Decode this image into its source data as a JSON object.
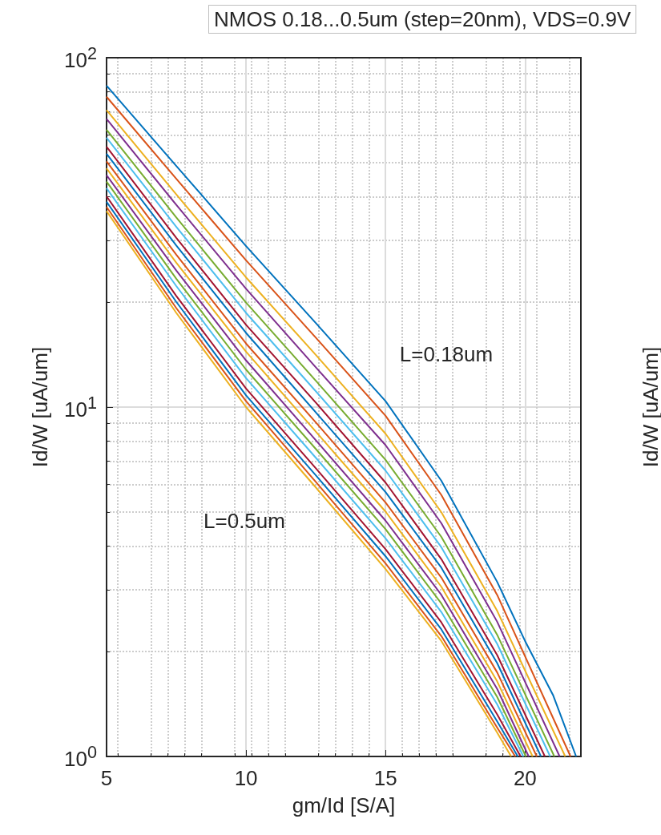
{
  "chart_data": {
    "type": "line",
    "title": "NMOS 0.18...0.5um (step=20nm), VDS=0.9V",
    "xlabel": "gm/Id [S/A]",
    "ylabel": "Id/W [uA/um]",
    "log": "y",
    "grid": true,
    "marker": "none",
    "line_style": "solid",
    "xlim": [
      5,
      22
    ],
    "xticks": [
      5,
      10,
      15,
      20
    ],
    "ylim": [
      1,
      100
    ],
    "yticks": [
      {
        "value": 1,
        "label": "10$^{0}$"
      },
      {
        "value": 10,
        "label": "10$^{1}$"
      },
      {
        "value": 100,
        "label": "10$^{2}$"
      }
    ],
    "annotations": [
      "L=0.18um",
      "L=0.5um",
      "Id/W [uA/um]"
    ],
    "series": [
      {
        "color": "#0072bd",
        "x": [
          5,
          7.5,
          10,
          12.5,
          15,
          17,
          19,
          20,
          21,
          21.83
        ],
        "values": [
          83.2,
          49.0,
          28.9,
          17.4,
          10.4,
          6.15,
          3.16,
          2.14,
          1.5,
          1
        ]
      },
      {
        "color": "#d95319",
        "x": [
          5,
          7.5,
          10,
          12.5,
          15,
          17,
          19,
          21.63
        ],
        "values": [
          77.3,
          45.0,
          26.3,
          15.8,
          9.44,
          5.6,
          2.9,
          1
        ]
      },
      {
        "color": "#edb120",
        "x": [
          5,
          7.5,
          10,
          12.5,
          15,
          17,
          19,
          21.44
        ],
        "values": [
          70.8,
          40.6,
          23.5,
          14.1,
          8.39,
          5.0,
          2.61,
          1
        ]
      },
      {
        "color": "#7e2f8e",
        "x": [
          5,
          7.5,
          10,
          12.5,
          15,
          17,
          19,
          21.24
        ],
        "values": [
          66.8,
          37.9,
          21.8,
          13.0,
          7.78,
          4.65,
          2.43,
          1
        ]
      },
      {
        "color": "#77ac30",
        "x": [
          5,
          7.5,
          10,
          12.5,
          15,
          17,
          19,
          21.05
        ],
        "values": [
          62.2,
          34.9,
          19.9,
          11.9,
          7.06,
          4.25,
          2.23,
          1
        ]
      },
      {
        "color": "#4dbeee",
        "x": [
          5,
          7.5,
          10,
          12.5,
          15,
          17,
          19,
          20.9
        ],
        "values": [
          59.0,
          32.8,
          18.6,
          11.1,
          6.58,
          3.97,
          2.1,
          1
        ]
      },
      {
        "color": "#a2142f",
        "x": [
          5,
          7.5,
          10,
          12.5,
          15,
          17,
          19,
          20.71
        ],
        "values": [
          55.6,
          30.5,
          17.2,
          10.3,
          6.08,
          3.67,
          1.95,
          1
        ]
      },
      {
        "color": "#0072bd",
        "x": [
          5,
          7.5,
          10,
          12.5,
          15,
          17,
          19,
          20.57
        ],
        "values": [
          53.1,
          29.0,
          16.3,
          9.66,
          5.71,
          3.47,
          1.85,
          1
        ]
      },
      {
        "color": "#d95319",
        "x": [
          5,
          7.5,
          10,
          12.5,
          15,
          17,
          19,
          20.42
        ],
        "values": [
          50.5,
          27.3,
          15.2,
          9.04,
          5.33,
          3.25,
          1.74,
          1
        ]
      },
      {
        "color": "#edb120",
        "x": [
          5,
          7.5,
          10,
          12.5,
          15,
          17,
          19,
          20.27
        ],
        "values": [
          48.2,
          25.9,
          14.4,
          8.51,
          5.02,
          3.06,
          1.64,
          1
        ]
      },
      {
        "color": "#7e2f8e",
        "x": [
          5,
          7.5,
          10,
          12.5,
          15,
          17,
          19,
          20.13
        ],
        "values": [
          46.1,
          24.6,
          13.6,
          8.04,
          4.73,
          2.9,
          1.56,
          1
        ]
      },
      {
        "color": "#77ac30",
        "x": [
          5,
          7.5,
          10,
          12.5,
          15,
          17,
          19,
          20.03
        ],
        "values": [
          44.2,
          23.3,
          12.8,
          7.59,
          4.47,
          2.74,
          1.48,
          1
        ]
      },
      {
        "color": "#4dbeee",
        "x": [
          5,
          7.5,
          10,
          12.5,
          15,
          17,
          19,
          19.94
        ],
        "values": [
          42.3,
          22.2,
          12.1,
          7.16,
          4.21,
          2.59,
          1.41,
          1
        ]
      },
      {
        "color": "#a2142f",
        "x": [
          5,
          7.5,
          10,
          12.5,
          15,
          17,
          19,
          19.84
        ],
        "values": [
          40.1,
          20.8,
          11.3,
          6.68,
          3.92,
          2.42,
          1.32,
          1
        ]
      },
      {
        "color": "#0072bd",
        "x": [
          5,
          7.5,
          10,
          12.5,
          15,
          17,
          19,
          19.74
        ],
        "values": [
          38.7,
          20.0,
          10.8,
          6.38,
          3.74,
          2.31,
          1.26,
          1
        ]
      },
      {
        "color": "#d95319",
        "x": [
          5,
          7.5,
          10,
          12.5,
          15,
          17,
          19,
          19.65
        ],
        "values": [
          37.4,
          19.2,
          10.4,
          6.11,
          3.57,
          2.21,
          1.21,
          1
        ]
      },
      {
        "color": "#edb120",
        "x": [
          5,
          7.5,
          10,
          12.5,
          15,
          17,
          19,
          19.5
        ],
        "values": [
          36.4,
          18.6,
          10.0,
          5.89,
          3.44,
          2.14,
          1.17,
          1
        ]
      }
    ]
  }
}
